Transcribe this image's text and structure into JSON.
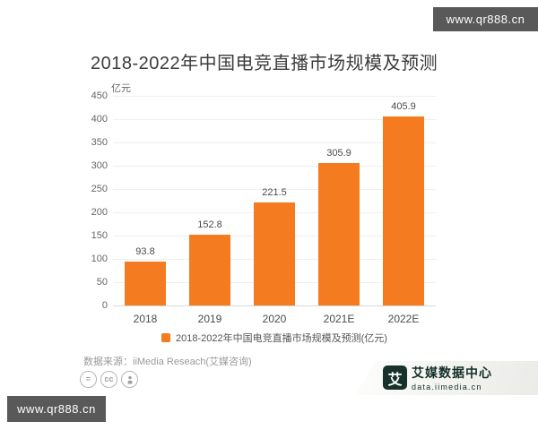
{
  "watermark": {
    "text": "www.qr888.cn"
  },
  "chart_data": {
    "type": "bar",
    "title": "2018-2022年中国电竞直播市场规模及预测",
    "unit_label": "亿元",
    "categories": [
      "2018",
      "2019",
      "2020",
      "2021E",
      "2022E"
    ],
    "values": [
      93.8,
      152.8,
      221.5,
      305.9,
      405.9
    ],
    "ylim": [
      0,
      450
    ],
    "ytick_step": 50,
    "grid": true,
    "legend": [
      "2018-2022年中国电竞直播市场规模及预测(亿元)"
    ],
    "legend_position": "bottom",
    "bar_color": "#F57B20"
  },
  "source": "数据来源：iiMedia Reseach(艾媒咨询)",
  "license_icons": {
    "equals_glyph": "=",
    "cc_glyph": "cc",
    "person_icon": "person-icon"
  },
  "footer_logo": {
    "glyph": "艾",
    "name_cn": "艾媒数据中心",
    "domain": "data.iimedia.cn"
  },
  "colors": {
    "bar": "#F57B20",
    "banner_bg": "#595959",
    "logo_dark": "#17322B"
  }
}
